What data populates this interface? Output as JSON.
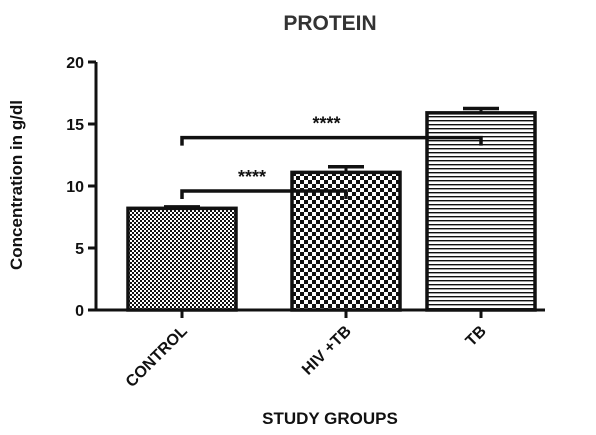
{
  "chart_data": {
    "type": "bar",
    "title": "PROTEIN",
    "xlabel": "STUDY GROUPS",
    "ylabel": "Concentration in g/dl",
    "categories": [
      "CONTROL",
      "HIV +TB",
      "TB"
    ],
    "values": [
      8.2,
      11.1,
      15.9
    ],
    "errors": [
      0.12,
      0.45,
      0.35
    ],
    "patterns": [
      "fine-checker",
      "coarse-checker",
      "horizontal-lines"
    ],
    "ylim": [
      0,
      20
    ],
    "yticks": [
      0,
      5,
      10,
      15,
      20
    ],
    "ytick_labels": [
      "0",
      "5",
      "10",
      "15",
      "20"
    ],
    "grid": false,
    "significance": [
      {
        "from": 0,
        "to": 2,
        "y": 13.9,
        "label": "****"
      },
      {
        "from": 0,
        "to": 1,
        "y": 9.6,
        "label": "****"
      }
    ]
  }
}
